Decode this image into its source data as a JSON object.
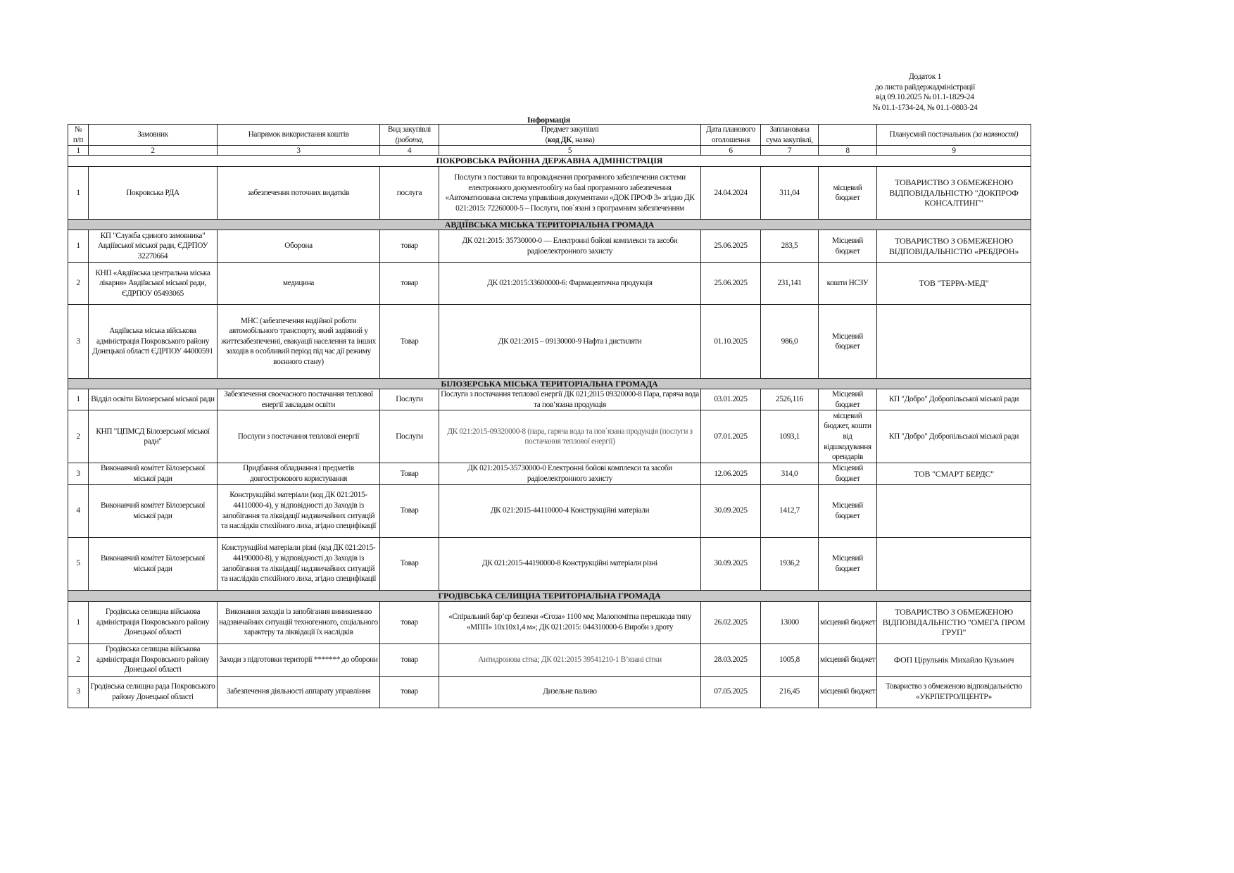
{
  "addendum": {
    "line1": "Додаток 1",
    "line2": "до листа райдержадміністрації",
    "line3": "від 09.10.2025 № 01.1-1829-24",
    "line4": "№ 01.1-1734-24, № 01.1-0803-24"
  },
  "title": "Інформація",
  "header": {
    "num_line1": "№",
    "num_line2": "п/п",
    "customer": "Замовник",
    "direction": "Напрямок використання коштів",
    "type_line1": "Вид закупівлі",
    "type_line2": "(робота,",
    "subject_line1": "Предмет закупівлі",
    "subject_open": "(",
    "subject_bold": "код ДК",
    "subject_rest": ", назва)",
    "date_line1": "Дата планового",
    "date_line2": "оголошення",
    "sum_line1": "Запланована",
    "sum_line2": "сума закупівлі,",
    "col8": "",
    "supplier": "Планусмий постачальник ",
    "supplier_italic": "(за наявності)",
    "column_numbers": [
      "1",
      "2",
      "3",
      "4",
      "5",
      "6",
      "7",
      "8",
      "9"
    ]
  },
  "sections": [
    {
      "title": "ПОКРОВСЬКА РАЙОННА ДЕРЖАВНА АДМІНІСТРАЦІЯ",
      "shaded": false,
      "rows": [
        [
          "1",
          "Покровська РДА",
          "забезпечення поточних видатків",
          "послуга",
          "Послуги з поставки та впровадження програмного забезпечення системи електронного документообігу на базі програмного забезпечення «Автоматизована система управління документами «ДОК ПРОФ 3» згідно ДК 021:2015: 72260000-5 – Послуги, пов`язані з програмним забезпеченням",
          "24.04.2024",
          "311,04",
          "місцевий бюджет",
          "ТОВАРИСТВО З ОБМЕЖЕНОЮ ВІДПОВІДАЛЬНІСТЮ \"ДОКПРОФ КОНСАЛТИНГ\""
        ]
      ]
    },
    {
      "title": "АВДІЇВСЬКА МІСЬКА ТЕРИТОРІАЛЬНА ГРОМАДА",
      "shaded": true,
      "rows": [
        [
          "1",
          "КП \"Служба єдиного замовника\" Авдіївської міської ради, ЄДРПОУ 32270664",
          "Оборона",
          "товар",
          "ДК 021:2015: 35730000-0 — Електронні бойові комплекси та засоби радіоелектронного захисту",
          "25.06.2025",
          "283,5",
          "Місцевий бюджет",
          "ТОВАРИСТВО З ОБМЕЖЕНОЮ ВІДПОВІДАЛЬНІСТЮ «РЕБДРОН»"
        ],
        [
          "2",
          "КНП «Авдіївська центральна міська лікарня» Авдіївської міської ради, ЄДРПОУ 05493065",
          "медицина",
          "товар",
          "ДК 021:2015:33600000-6: Фармацевтична продукція",
          "25.06.2025",
          "231,141",
          "кошти НСЗУ",
          "ТОВ \"ТЕРРА-МЕД\""
        ],
        [
          "3",
          "Авдіївська міська військова адміністрація Покровського району Донецької області ЄДРПОУ 44000591",
          "МНС (забезпечення надійної роботи автомобільного транспорту, який задіяний у життєзабезпеченні, евакуації населення та інших заходів в особливий період під час дії режиму воєнного стану)",
          "Товар",
          "ДК 021:2015 – 09130000-9 Нафта і дистиляти",
          "01.10.2025",
          "986,0",
          "Місцевий бюджет",
          ""
        ]
      ]
    },
    {
      "title": "БІЛОЗЕРСЬКА МІСЬКА ТЕРИТОРІАЛЬНА ГРОМАДА",
      "shaded": true,
      "rows": [
        [
          "1",
          "Відділ освіти Білозерської міської ради",
          "Забезпечення своєчасного постачання теплової енергії  закладам освіти",
          "Послуги",
          "Послуги з постачання теплової енергії     ДК 021;2015 09320000-8 Пара, гаряча вода та пов’язана продукція",
          "03.01.2025",
          "2526,116",
          "Місцевий бюджет",
          "КП \"Добро\" Добропільської міської ради"
        ],
        [
          "2",
          "КНП \"ЦПМСД Білозерської міської ради\"",
          "Послуги з постачання теплової енергії",
          "Послуги",
          "ДК 021:2015-09320000-8 (пара, гаряча вода та пов`язана продукція (послуги з постачання теплової енергії)",
          "07.01.2025",
          "1093,1",
          "місцевий бюджет, кошти від відшкодування орендарів",
          "КП \"Добро\" Добропільської міської ради"
        ],
        [
          "3",
          "Виконавчий комітет Білозерської міської ради",
          "Придбання обладнання і предметів довгострокового користування",
          "Товар",
          "ДК 021:2015-35730000-0 Електронні бойові комплекси та засоби радіоелектронного захисту",
          "12.06.2025",
          "314,0",
          "Місцевий бюджет",
          "ТОВ \"СМАРТ БЕРДС\""
        ],
        [
          "4",
          "Виконавчий комітет Білозерської міської ради",
          "Конструкційні матеріали (код ДК 021:2015-44110000-4), у відповідності до Заходів із запобігання та ліквідації надзвичайних ситуацій та наслідків стихійного лиха, згідно специфікації",
          "Товар",
          "ДК 021:2015-44110000-4 Конструкційні матеріали",
          "30.09.2025",
          "1412,7",
          "Місцевий бюджет",
          ""
        ],
        [
          "5",
          "Виконавчий комітет Білозерської міської ради",
          "Конструкційні матеріали різні (код ДК 021:2015-44190000-8), у відповідності до Заходів із запобігання та ліквідації надзвичайних ситуацій та наслідків стихійного лиха, згідно специфікації",
          "Товар",
          "ДК 021:2015-44190000-8 Конструкційні матеріали різні",
          "30.09.2025",
          "1936,2",
          "Місцевий бюджет",
          ""
        ]
      ]
    },
    {
      "title": "ГРОДІВСЬКА СЕЛИЩНА ТЕРИТОРІАЛЬНА ГРОМАДА",
      "shaded": true,
      "rows": [
        [
          "1",
          "Гродівська селищна військова адміністрація Покровського району Донецької області",
          "Виконання заходів із запобігання виникненню надзвичайних ситуацій техногенного, соціального характеру та ліквідації їх наслідків",
          "товар",
          "«Спіральний бар’єр безпеки «Єгоза» 1100 мм; Малопомітна перешкода типу «МПП» 10х10х1,4 м»; ДК 021:2015: 044310000-6 Вироби з дроту",
          "26.02.2025",
          "13000",
          "місцевий бюджет",
          "ТОВАРИСТВО З ОБМЕЖЕНОЮ ВІДПОВІДАЛЬНІСТЮ \"ОМЕГА ПРОМ ГРУП\""
        ],
        [
          "2",
          "Гродівська селищна військова адміністрація Покровського району Донецької області",
          "Заходи з підготовки території ******* до оборони",
          "товар",
          "Антидронова сітка; ДК 021:2015 39541210-1 В’язані сітки",
          "28.03.2025",
          "1005,8",
          "місцевий бюджет",
          "ФОП Цірульнік Михайло Кузьмич"
        ],
        [
          "3",
          "Гродівська селищна рада Покровського району Донецької області",
          "Забезпечення діяльності аппарату управління",
          "товар",
          "Дизельне паливо",
          "07.05.2025",
          "216,45",
          "місцевий бюджет",
          "Товариство з обмеженою відповідальністю «УКРПЕТРОЛЦЕНТР»"
        ]
      ]
    }
  ]
}
